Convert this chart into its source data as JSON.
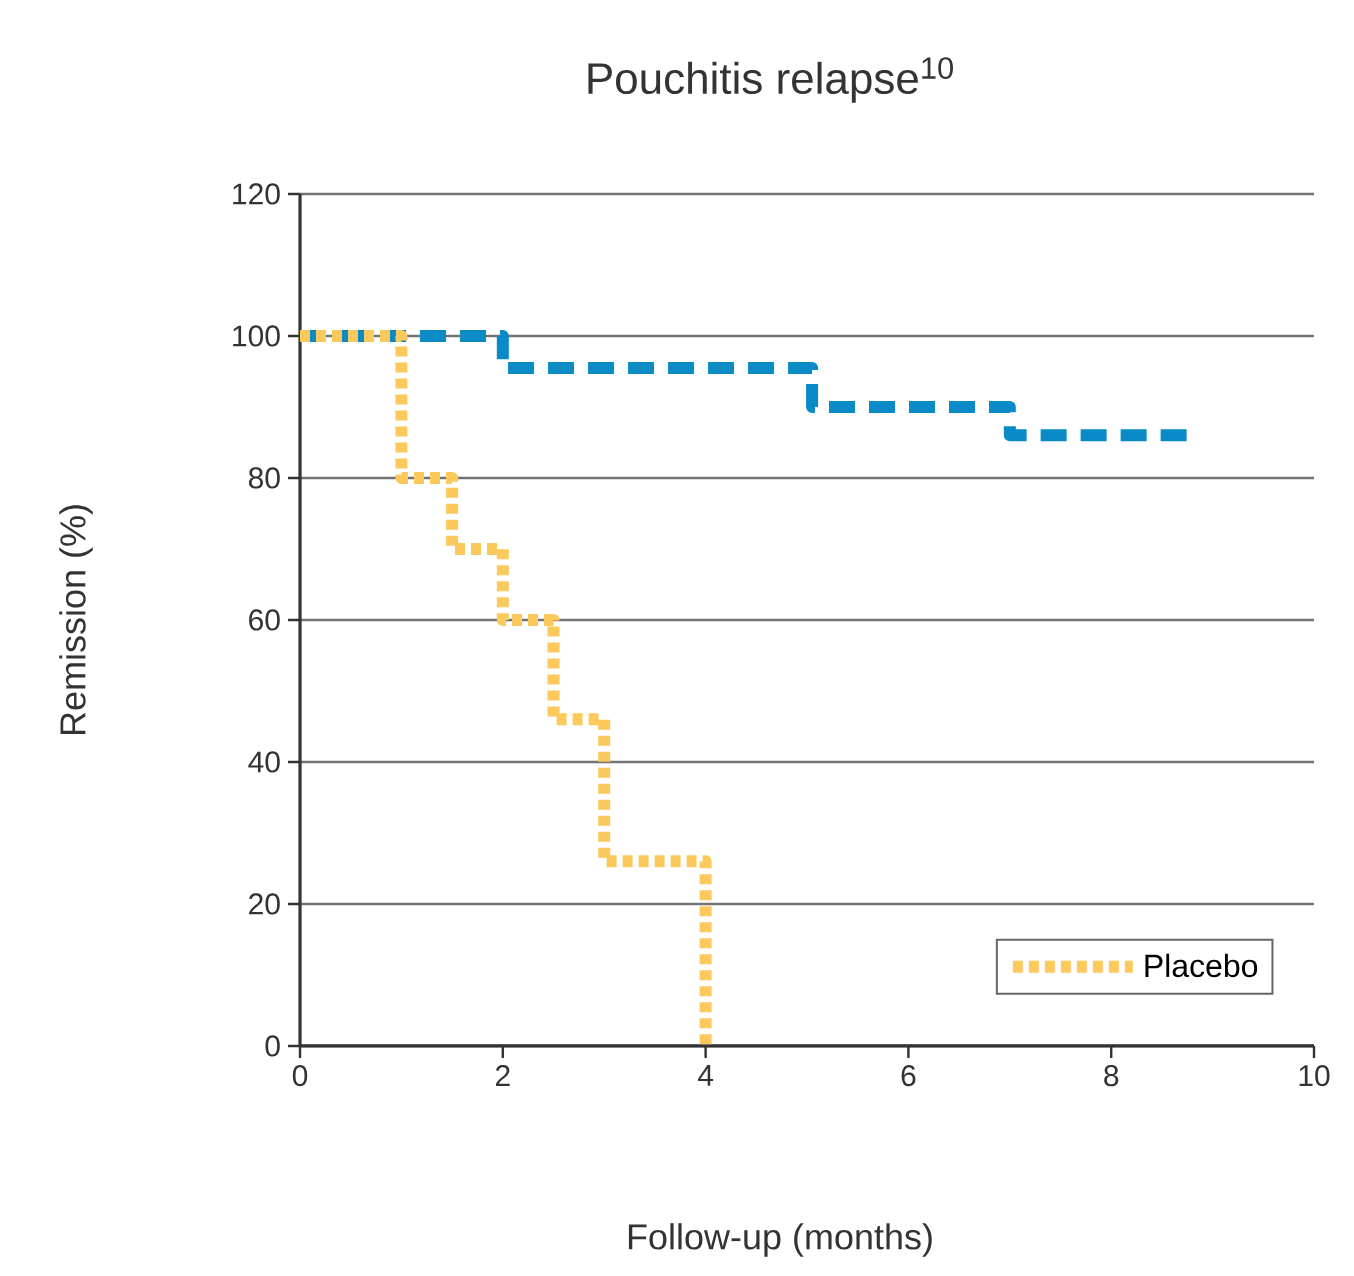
{
  "chart_data": {
    "type": "step",
    "title": "Pouchitis relapse$^{10}$",
    "xlabel": "Follow-up (months)",
    "ylabel": "Remission (%)",
    "series": [
      {
        "color": "#0a8ac6",
        "line_style": "dashed",
        "x": [
          0,
          2,
          5.05,
          7,
          8.8
        ],
        "values": [
          100,
          95.5,
          90,
          86,
          86
        ]
      },
      {
        "name": "Placebo",
        "color": "#fbc95c",
        "line_style": "dotted",
        "x": [
          0,
          1,
          1.5,
          2,
          2.5,
          3,
          4
        ],
        "values": [
          100,
          80,
          70,
          60,
          46,
          26,
          0
        ]
      }
    ],
    "xlim": [
      0,
      10
    ],
    "ylim": [
      0,
      120
    ],
    "xticks": [
      0,
      2,
      4,
      6,
      8,
      10
    ],
    "yticks": [
      0,
      20,
      40,
      60,
      80,
      100,
      120
    ],
    "grid": "y",
    "legend": "bottom right"
  }
}
